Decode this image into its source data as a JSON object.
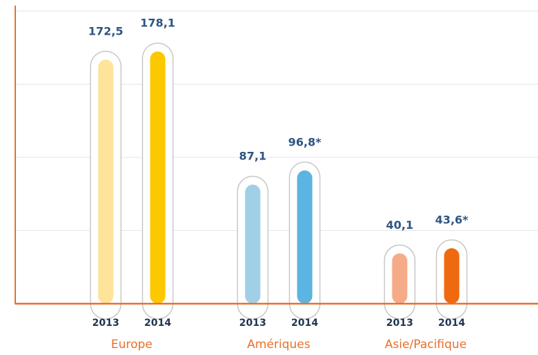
{
  "chart_data": {
    "type": "bar",
    "categories": [
      "Europe",
      "Amériques",
      "Asie/Pacifique"
    ],
    "series": [
      {
        "name": "2013",
        "colors": [
          "#fde49a",
          "#9fd0e8",
          "#f5ab88"
        ],
        "values": [
          172.5,
          87.1,
          40.1
        ],
        "value_labels": [
          "172,5",
          "87,1",
          "40,1"
        ]
      },
      {
        "name": "2014",
        "colors": [
          "#fcc800",
          "#5bb4e2",
          "#ef6a0f"
        ],
        "values": [
          178.1,
          96.8,
          43.6
        ],
        "value_labels": [
          "178,1",
          "96,8*",
          "43,6*"
        ]
      }
    ],
    "ylim": [
      0,
      200
    ],
    "yticks": [
      0,
      50,
      100,
      150,
      200
    ],
    "grid": true,
    "axis_color": "#e8702a"
  }
}
